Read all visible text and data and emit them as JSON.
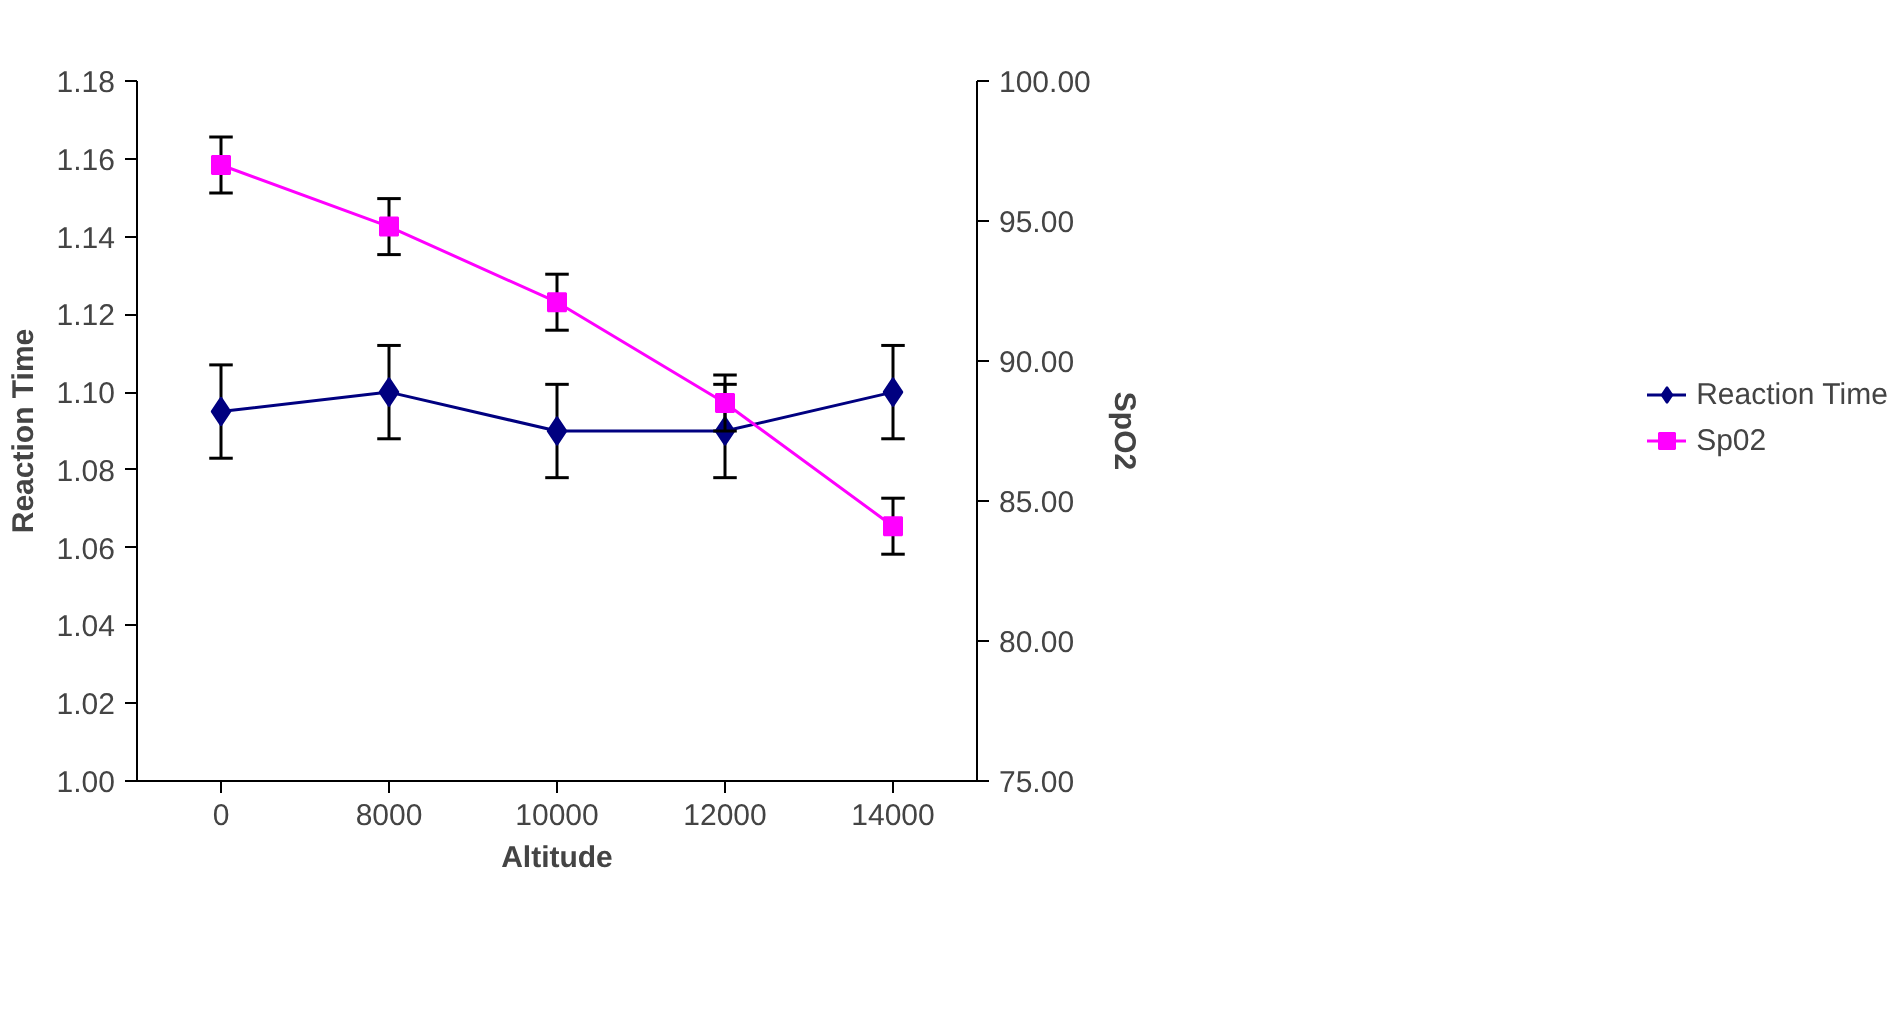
{
  "chart_data": {
    "type": "line",
    "xlabel": "Altitude",
    "ylabel": "Reaction Time",
    "y2label": "SpO2",
    "categories": [
      "0",
      "8000",
      "10000",
      "12000",
      "14000"
    ],
    "series": [
      {
        "name": "Reaction Time",
        "color": "#000080",
        "marker": "diamond",
        "values": [
          1.095,
          1.1,
          1.09,
          1.09,
          1.1
        ],
        "errors": [
          0.012,
          0.012,
          0.012,
          0.012,
          0.012
        ]
      },
      {
        "name": "Sp02",
        "color": "#ff00ff",
        "marker": "square",
        "axis": "y2",
        "values": [
          97.0,
          94.8,
          92.1,
          88.5,
          84.1
        ],
        "errors": [
          1.0,
          1.0,
          1.0,
          1.0,
          1.0
        ]
      }
    ],
    "ylim": [
      1.0,
      1.18
    ],
    "yticks": [
      {
        "value": 1.0,
        "label": "1.00"
      },
      {
        "value": 1.02,
        "label": "1.02"
      },
      {
        "value": 1.04,
        "label": "1.04"
      },
      {
        "value": 1.06,
        "label": "1.06"
      },
      {
        "value": 1.08,
        "label": "1.08"
      },
      {
        "value": 1.1,
        "label": "1.10"
      },
      {
        "value": 1.12,
        "label": "1.12"
      },
      {
        "value": 1.14,
        "label": "1.14"
      },
      {
        "value": 1.16,
        "label": "1.16"
      },
      {
        "value": 1.18,
        "label": "1.18"
      }
    ],
    "y2lim": [
      75,
      100
    ],
    "y2ticks": [
      {
        "value": 75,
        "label": "75.00"
      },
      {
        "value": 80,
        "label": "80.00"
      },
      {
        "value": 85,
        "label": "85.00"
      },
      {
        "value": 90,
        "label": "90.00"
      },
      {
        "value": 95,
        "label": "95.00"
      },
      {
        "value": 100,
        "label": "100.00"
      }
    ],
    "legend": "right",
    "grid": false
  }
}
